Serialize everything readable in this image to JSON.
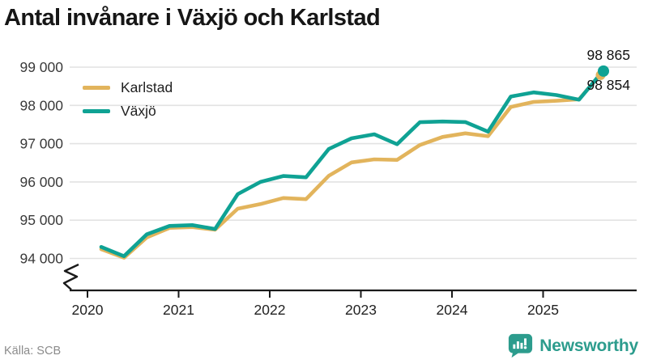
{
  "chart_data": {
    "type": "line",
    "title": "Antal invånare i Växjö och Karlstad",
    "x": [
      "2020 Q1",
      "2020 Q2",
      "2020 Q3",
      "2020 Q4",
      "2021 Q1",
      "2021 Q2",
      "2021 Q3",
      "2021 Q4",
      "2022 Q1",
      "2022 Q2",
      "2022 Q3",
      "2022 Q4",
      "2023 Q1",
      "2023 Q2",
      "2023 Q3",
      "2023 Q4",
      "2024 Q1",
      "2024 Q2",
      "2024 Q3",
      "2024 Q4",
      "2025 Q1",
      "2025 Q2",
      "2025 Q3"
    ],
    "series": [
      {
        "name": "Karlstad",
        "color": "#E2B45C",
        "values": [
          94240,
          94020,
          94550,
          94800,
          94820,
          94750,
          95300,
          95420,
          95580,
          95550,
          96160,
          96510,
          96590,
          96575,
          96965,
          97175,
          97270,
          97195,
          97960,
          98090,
          98120,
          98160,
          98854
        ],
        "end_label": "98 854"
      },
      {
        "name": "Växjö",
        "color": "#0FA294",
        "values": [
          94300,
          94060,
          94630,
          94850,
          94870,
          94770,
          95680,
          96000,
          96155,
          96120,
          96860,
          97140,
          97245,
          96985,
          97560,
          97580,
          97565,
          97315,
          98230,
          98340,
          98270,
          98150,
          98865
        ],
        "end_label": "98 865"
      }
    ],
    "xticks": [
      "2020",
      "2021",
      "2022",
      "2023",
      "2024",
      "2025"
    ],
    "yticks": [
      "94 000",
      "95 000",
      "96 000",
      "97 000",
      "98 000",
      "99 000"
    ],
    "ylim": [
      94000,
      99000
    ],
    "axis_break": true,
    "grid": "horizontal",
    "legend_position": "top-left"
  },
  "source": "Källa: SCB",
  "branding": {
    "name": "Newsworthy",
    "color": "#2C9C8D",
    "icon": "bar-chart-speech-bubble-icon"
  }
}
